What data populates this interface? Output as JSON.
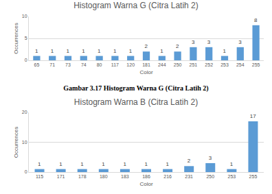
{
  "chart_data": [
    {
      "type": "bar",
      "title": "Histogram Warna G (Citra Latih 2)",
      "x_label": "Color",
      "y_label": "Occurrences",
      "categories": [
        "65",
        "71",
        "73",
        "74",
        "80",
        "117",
        "120",
        "181",
        "244",
        "250",
        "251",
        "252",
        "253",
        "254",
        "255"
      ],
      "values": [
        1,
        1,
        1,
        1,
        1,
        1,
        1,
        2,
        1,
        2,
        3,
        3,
        1,
        3,
        8
      ],
      "color": "#5b9bd5",
      "ylim": [
        0,
        10
      ],
      "yticks": [
        0,
        5,
        10
      ],
      "grid": true,
      "data_labels": true
    },
    {
      "type": "bar",
      "title": "Histogram Warna B (Citra Latih 2)",
      "x_label": "Color",
      "y_label": "Occurrences",
      "categories": [
        "115",
        "171",
        "178",
        "180",
        "183",
        "186",
        "216",
        "231",
        "250",
        "253",
        "255"
      ],
      "values": [
        1,
        1,
        1,
        1,
        1,
        1,
        1,
        2,
        3,
        1,
        17
      ],
      "color": "#5b9bd5",
      "ylim": [
        0,
        20
      ],
      "yticks": [
        0,
        10,
        20
      ],
      "grid": true,
      "data_labels": true
    }
  ],
  "caption": "Gambar 3.17 Histogram Warna G (Citra Latih 2)"
}
